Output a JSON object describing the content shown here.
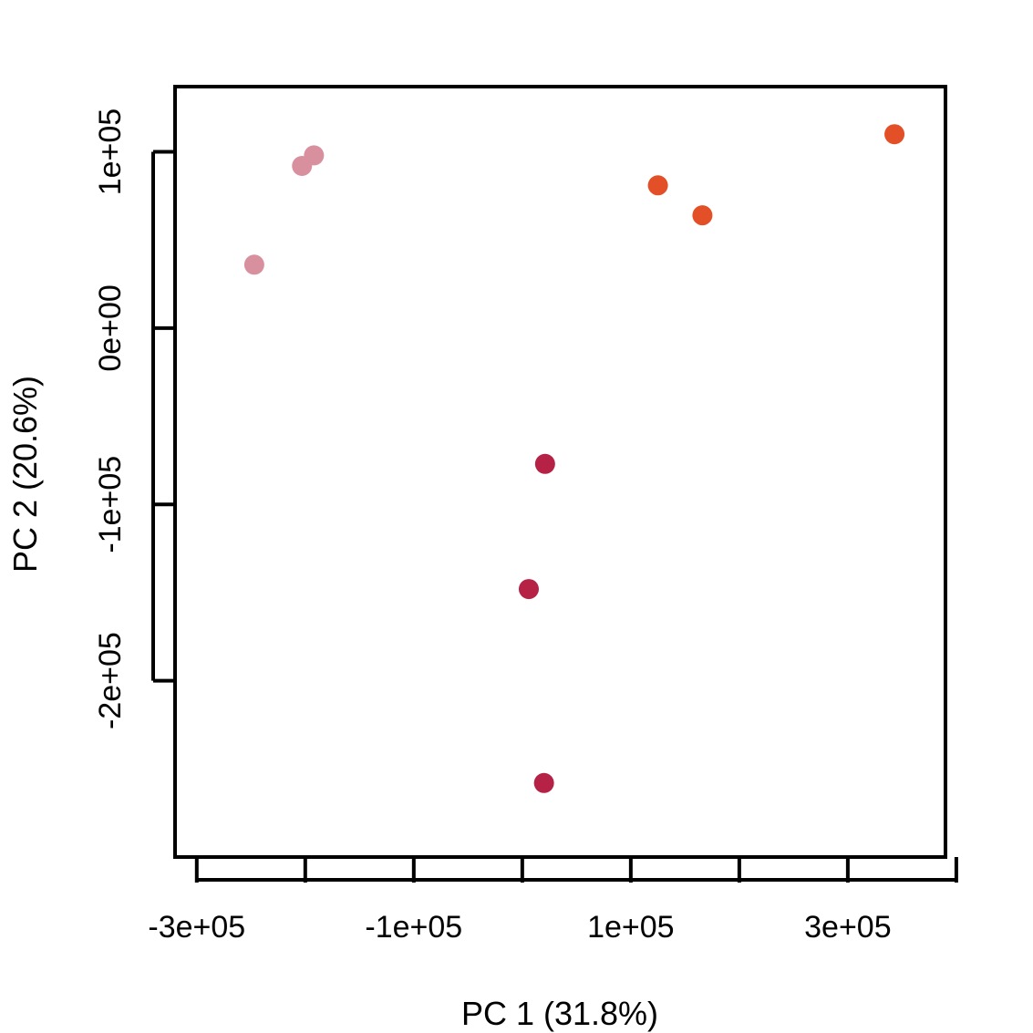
{
  "chart_data": {
    "type": "scatter",
    "title": "",
    "xlabel": "PC 1 (31.8%)",
    "ylabel": "PC 2 (20.6%)",
    "xlim": [
      -320000,
      390000
    ],
    "ylim": [
      -300000,
      137000
    ],
    "x_ticks": [
      -300000,
      -200000,
      -100000,
      0,
      100000,
      200000,
      300000,
      400000
    ],
    "x_tick_labels": [
      "-3e+05",
      "",
      "-1e+05",
      "",
      "1e+05",
      "",
      "3e+05",
      ""
    ],
    "y_ticks": [
      100000,
      0,
      -100000,
      -200000
    ],
    "y_tick_labels": [
      "1e+05",
      "0e+00",
      "-1e+05",
      "-2e+05"
    ],
    "grid": false,
    "legend": "none",
    "series": [
      {
        "color": "#d8909e",
        "points": [
          {
            "x": -247000,
            "y": 36000
          },
          {
            "x": -203000,
            "y": 92000
          },
          {
            "x": -192000,
            "y": 98000
          }
        ]
      },
      {
        "color": "#e34f26",
        "points": [
          {
            "x": 125000,
            "y": 81000
          },
          {
            "x": 166000,
            "y": 64000
          },
          {
            "x": 343000,
            "y": 110000
          }
        ]
      },
      {
        "color": "#b52246",
        "points": [
          {
            "x": 21000,
            "y": -77000
          },
          {
            "x": 6000,
            "y": -148000
          },
          {
            "x": 20000,
            "y": -258000
          }
        ]
      }
    ]
  }
}
